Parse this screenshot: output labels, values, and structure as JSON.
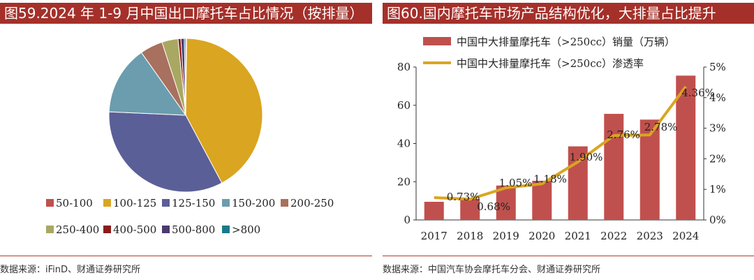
{
  "left": {
    "title": "图59.2024 年 1-9 月中国出口摩托车占比情况（按排量）",
    "source": "数据来源：iFinD、财通证券研究所",
    "chart_data": {
      "type": "pie",
      "title": "2024 年 1-9 月中国出口摩托车占比情况（按排量）",
      "categories": [
        "50-100",
        "100-125",
        "125-150",
        "150-200",
        "200-250",
        "250-400",
        "400-500",
        "500-800",
        ">800"
      ],
      "values": [
        0.2,
        42.0,
        33.5,
        14.5,
        4.8,
        3.4,
        0.6,
        0.7,
        0.3
      ],
      "colors": [
        "#c0504d",
        "#daa520",
        "#5b5f97",
        "#6b9dae",
        "#a8705f",
        "#a8a862",
        "#8b1a1a",
        "#4a3a70",
        "#1a7a8c"
      ],
      "legend_position": "bottom"
    }
  },
  "right": {
    "title": "图60.国内摩托车市场产品结构优化，大排量占比提升",
    "source": "数据来源：中国汽车协会摩托车分会、财通证券研究所",
    "chart_data": {
      "type": "bar+line",
      "categories": [
        "2017",
        "2018",
        "2019",
        "2020",
        "2021",
        "2022",
        "2023",
        "2024"
      ],
      "series": [
        {
          "name": "中国中大排量摩托车（>250cc）销量（万辆）",
          "type": "bar",
          "axis": "left",
          "values": [
            9.5,
            11.0,
            18.0,
            20.5,
            38.5,
            55.5,
            52.5,
            75.5
          ],
          "color": "#c0504d"
        },
        {
          "name": "中国中大排量摩托车（>250cc）渗透率",
          "type": "line",
          "axis": "right",
          "values": [
            0.73,
            0.68,
            1.05,
            1.18,
            1.9,
            2.76,
            2.78,
            4.36
          ],
          "color": "#daa520",
          "labels": [
            "0.73%",
            "0.68%",
            "1.05%",
            "1.18%",
            "1.90%",
            "2.76%",
            "2.78%",
            "4.36%"
          ]
        }
      ],
      "ylim_left": [
        0,
        80
      ],
      "yticks_left": [
        "0",
        "20",
        "40",
        "60",
        "80"
      ],
      "ylim_right": [
        0,
        5
      ],
      "yticks_right": [
        "0%",
        "1%",
        "2%",
        "3%",
        "4%",
        "5%"
      ],
      "legend_position": "top"
    }
  }
}
